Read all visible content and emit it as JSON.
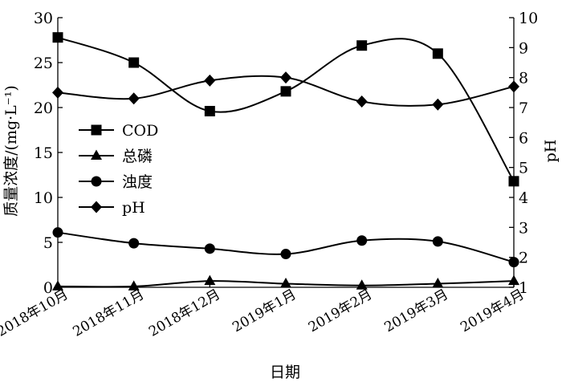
{
  "chart_data": {
    "type": "line",
    "xlabel": "日期",
    "ylabel_left": "质量浓度/(mg·L⁻¹)",
    "ylabel_right": "pH",
    "categories": [
      "2018年10月",
      "2018年11月",
      "2018年12月",
      "2019年1月",
      "2019年2月",
      "2019年3月",
      "2019年4月"
    ],
    "ylim_left": [
      0,
      30
    ],
    "ylim_right": [
      1,
      10
    ],
    "yticks_left": [
      "0",
      "5",
      "10",
      "15",
      "20",
      "25",
      "30"
    ],
    "yticks_right": [
      "1",
      "2",
      "3",
      "4",
      "5",
      "6",
      "7",
      "8",
      "9",
      "10"
    ],
    "series": [
      {
        "name": "COD",
        "axis": "left",
        "marker": "square",
        "values": [
          27.8,
          25.0,
          19.6,
          21.8,
          26.9,
          26.0,
          11.8
        ]
      },
      {
        "name": "总磷",
        "axis": "left",
        "marker": "triangle",
        "values": [
          0.1,
          0.1,
          0.7,
          0.4,
          0.2,
          0.4,
          0.7
        ]
      },
      {
        "name": "浊度",
        "axis": "left",
        "marker": "circle",
        "values": [
          6.1,
          4.9,
          4.3,
          3.7,
          5.2,
          5.1,
          2.8
        ]
      },
      {
        "name": "pH",
        "axis": "right",
        "marker": "diamond",
        "values": [
          7.5,
          7.3,
          7.9,
          8.0,
          7.2,
          7.1,
          7.7
        ]
      }
    ],
    "legend_position": "left",
    "grid": false
  }
}
